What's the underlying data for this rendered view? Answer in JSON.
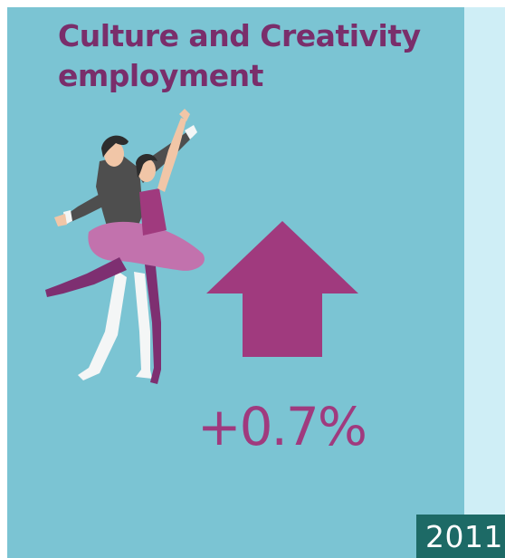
{
  "title": {
    "line1": "Culture and Creativity",
    "line2": "employment"
  },
  "stat": {
    "value": "+0.7%",
    "direction": "up"
  },
  "year_badge": "2011",
  "illustration": {
    "dancers_icon": "ballet-dancers-icon",
    "arrow_icon": "up-arrow-icon"
  },
  "colors": {
    "background": "#7bc4d3",
    "side_panel": "#cfeef6",
    "title_text": "#7a2e6b",
    "accent_magenta": "#a03a7e",
    "percent_text": "#a03a7e",
    "badge_bg": "#1d6a66",
    "badge_text": "#ffffff",
    "tutu": "#c272ad",
    "dark_jacket": "#4e4e4e",
    "tights_white": "#f4f6f6",
    "hair": "#2d2d2d",
    "skin": "#f1c6a7",
    "purple_leg": "#7e2f71"
  }
}
